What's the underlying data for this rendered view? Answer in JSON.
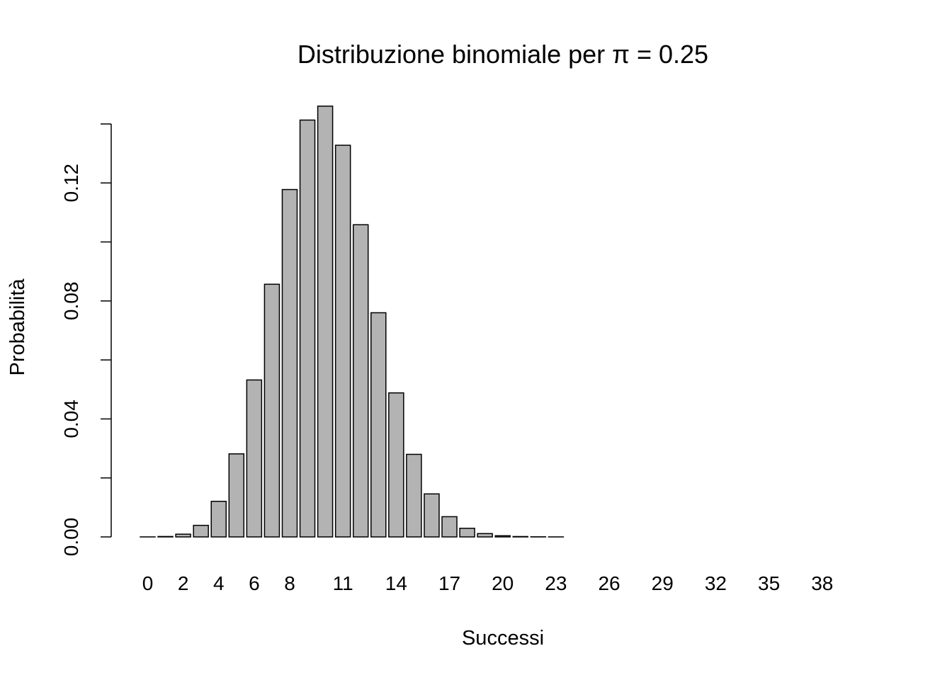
{
  "chart_data": {
    "type": "bar",
    "title": "Distribuzione binomiale per π = 0.25",
    "xlabel": "Successi",
    "ylabel": "Probabilità",
    "categories": [
      "0",
      "1",
      "2",
      "3",
      "4",
      "5",
      "6",
      "7",
      "8",
      "9",
      "10",
      "11",
      "12",
      "13",
      "14",
      "15",
      "16",
      "17",
      "18",
      "19",
      "20",
      "21",
      "22",
      "23",
      "24",
      "25",
      "26",
      "27",
      "28",
      "29",
      "30",
      "31",
      "32",
      "33",
      "34",
      "35",
      "36",
      "37",
      "38",
      "39",
      "40"
    ],
    "shown_category_labels": [
      "0",
      "2",
      "4",
      "6",
      "8",
      "11",
      "14",
      "17",
      "20",
      "23",
      "26",
      "29",
      "32",
      "35",
      "38"
    ],
    "values": [
      1e-05,
      0.00014,
      0.00093,
      0.00392,
      0.01207,
      0.02816,
      0.05321,
      0.08566,
      0.11777,
      0.14132,
      0.14604,
      0.13278,
      0.10584,
      0.076,
      0.04883,
      0.02799,
      0.01458,
      0.00686,
      0.00292,
      0.00113,
      0.0004,
      0.00013,
      4e-05,
      1e-05,
      0,
      0,
      0,
      0,
      0,
      0,
      0,
      0,
      0,
      0,
      0,
      0,
      0,
      0,
      0,
      0,
      0
    ],
    "yticks": [
      "0.00",
      "0.04",
      "0.08",
      "0.12"
    ],
    "ylim": [
      0,
      0.14
    ],
    "grid": false,
    "bar_color": "#b3b3b3",
    "bar_border_color": "#000000"
  }
}
